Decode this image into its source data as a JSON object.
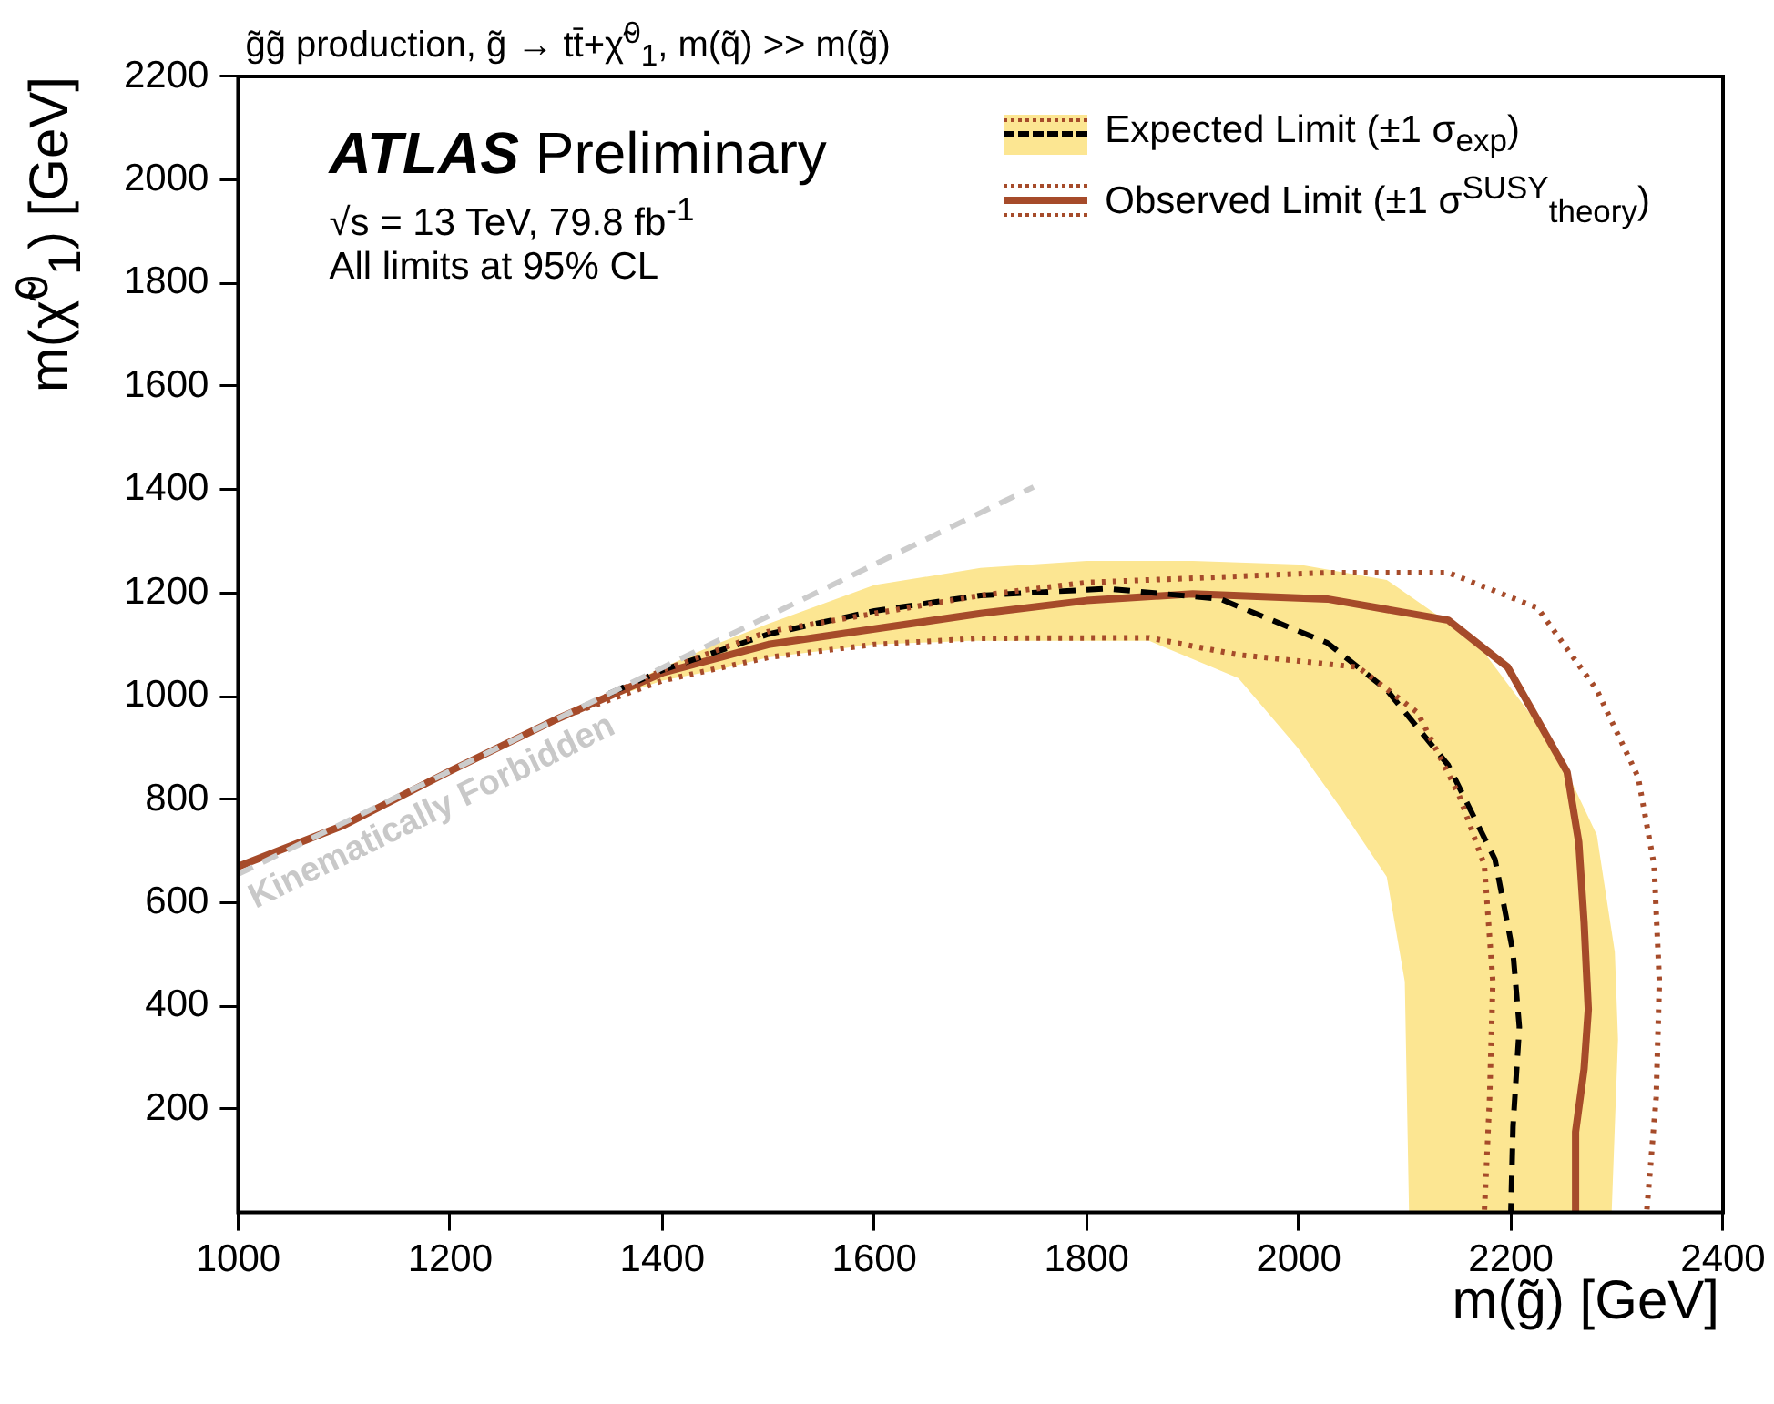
{
  "chart_data": {
    "type": "line",
    "title": "g̃g̃  production, g̃ → tt̄+χ̃$^{0}$$_{1}$, m(q̃) >> m(g̃)",
    "xlabel": "m(g̃) [GeV]",
    "ylabel": "m(χ̃$^{0}$$_{1}$) [GeV]",
    "xlim": [
      1000,
      2400
    ],
    "xticks": [
      1000,
      1200,
      1400,
      1600,
      1800,
      2000,
      2200,
      2400
    ],
    "ylim": [
      0,
      2200
    ],
    "yticks": [
      200,
      400,
      600,
      800,
      1000,
      1200,
      1400,
      1600,
      1800,
      2000,
      2200
    ],
    "grid": false,
    "legend": "top right",
    "annotations": [
      "ATLAS Preliminary",
      "√s = 13 TeV, 79.8 fb$^{-1}$",
      "All limits at 95% CL",
      "Kinematically Forbidden"
    ],
    "series": [
      {
        "type": "area",
        "color": "#fce692",
        "x": [
          1350,
          1400,
          1450,
          1500,
          1600,
          1700,
          1800,
          1900,
          2000,
          2083,
          2168,
          2242,
          2281,
          2298,
          2301,
          2295,
          2104,
          2100,
          2083,
          2039,
          1999,
          1943,
          1859,
          1690,
          1600,
          1500,
          1450,
          1400,
          1350
        ],
        "values": [
          1005,
          1055,
          1100,
          1140,
          1215,
          1248,
          1262,
          1262,
          1255,
          1225,
          1103,
          900,
          731,
          504,
          335,
          0,
          0,
          447,
          650,
          785,
          900,
          1035,
          1107,
          1107,
          1100,
          1075,
          1050,
          1030,
          995
        ]
      },
      {
        "name": "Expected Limit (±1 σ$_{exp}$)",
        "color": "#000000",
        "line_style": "dashed",
        "x": [
          1350,
          1400,
          1500,
          1600,
          1700,
          1820,
          1926,
          2027,
          2083,
          2141,
          2185,
          2202,
          2208,
          2202,
          2200
        ],
        "values": [
          1005,
          1050,
          1120,
          1165,
          1195,
          1208,
          1188,
          1103,
          1012,
          866,
          684,
          504,
          359,
          166,
          0
        ]
      },
      {
        "name": "Observed Limit (±1 σ$^{SUSY}$$_{theory}$)",
        "color": "#a64b2a",
        "line_style": "solid",
        "x": [
          1000,
          1100,
          1200,
          1300,
          1400,
          1500,
          1600,
          1700,
          1800,
          1900,
          2027,
          2141,
          2197,
          2253,
          2264,
          2269,
          2273,
          2269,
          2261,
          2261
        ],
        "values": [
          670,
          750,
          855,
          955,
          1045,
          1100,
          1130,
          1160,
          1185,
          1198,
          1188,
          1147,
          1056,
          853,
          717,
          562,
          393,
          278,
          156,
          0
        ]
      },
      {
        "color": "#a64b2a",
        "line_style": "dotted",
        "x": [
          1000,
          1100,
          1200,
          1300,
          1400,
          1500,
          1600,
          1700,
          1800,
          2027,
          2141,
          2225,
          2281,
          2320,
          2335,
          2340,
          2337,
          2328
        ],
        "values": [
          670,
          750,
          855,
          955,
          1050,
          1125,
          1160,
          1195,
          1220,
          1239,
          1239,
          1171,
          1012,
          843,
          673,
          447,
          223,
          0
        ]
      },
      {
        "color": "#a64b2a",
        "line_style": "dotted",
        "x": [
          1000,
          1100,
          1200,
          1300,
          1400,
          1500,
          1600,
          1700,
          1859,
          1943,
          2056,
          2112,
          2151,
          2175,
          2183,
          2180,
          2175
        ],
        "values": [
          670,
          750,
          855,
          955,
          1030,
          1075,
          1100,
          1112,
          1113,
          1080,
          1056,
          968,
          809,
          673,
          447,
          223,
          0
        ]
      },
      {
        "color": "#cccccc",
        "line_style": "dashed",
        "x": [
          1000,
          1750
        ],
        "values": [
          655,
          1405
        ]
      }
    ]
  }
}
